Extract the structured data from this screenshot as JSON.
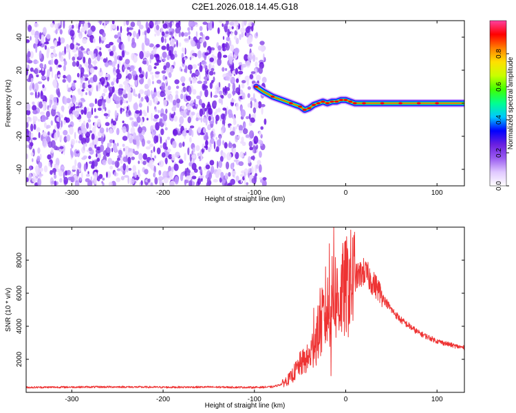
{
  "title": "C2E1.2026.018.14.45.G18",
  "chart_data": [
    {
      "type": "heatmap",
      "xlabel": "Height of straight line (km)",
      "ylabel": "Frequency (Hz)",
      "xlim": [
        -350,
        130
      ],
      "ylim": [
        -50,
        50
      ],
      "x_ticks": [
        -300,
        -200,
        -100,
        0,
        100
      ],
      "y_ticks": [
        -40,
        -20,
        0,
        20,
        40
      ],
      "noise_region_x": [
        -350,
        -88
      ],
      "ridge": {
        "x": [
          -98,
          -90,
          -80,
          -70,
          -60,
          -50,
          -45,
          -40,
          -35,
          -30,
          -25,
          -20,
          -15,
          -10,
          -5,
          0,
          5,
          10,
          20,
          40,
          60,
          80,
          100,
          130
        ],
        "y": [
          10,
          7,
          4,
          2,
          0,
          -2,
          -4,
          -3,
          -1,
          0,
          1,
          0,
          1,
          1,
          2,
          2,
          1,
          0,
          0,
          0,
          0,
          0,
          0,
          0
        ]
      },
      "colorbar": {
        "label": "Normalized spectral amplitude",
        "range": [
          0,
          1
        ],
        "ticks": [
          "0.0",
          "0.2",
          "0.4",
          "0.6",
          "0.8"
        ],
        "colors": [
          "#ffffff",
          "#e0c8ff",
          "#9a5cf0",
          "#6a1fe0",
          "#0000ff",
          "#00c8ff",
          "#00ff90",
          "#40ff00",
          "#c8ff00",
          "#ffe000",
          "#ff8000",
          "#ff0000",
          "#ff40a0"
        ]
      }
    },
    {
      "type": "line",
      "xlabel": "Height of straight line (km)",
      "ylabel": "SNR (10 * v/v)",
      "xlim": [
        -350,
        130
      ],
      "ylim": [
        0,
        10000
      ],
      "x_ticks": [
        -300,
        -200,
        -100,
        0,
        100
      ],
      "y_ticks": [
        2000,
        4000,
        6000,
        8000
      ],
      "color": "#ee3333",
      "x": [
        -350,
        -300,
        -250,
        -200,
        -150,
        -100,
        -80,
        -70,
        -60,
        -50,
        -40,
        -35,
        -30,
        -25,
        -20,
        -15,
        -12,
        -8,
        -4,
        0,
        10,
        20,
        25,
        30,
        35,
        40,
        50,
        60,
        80,
        100,
        120,
        130
      ],
      "y": [
        300,
        320,
        330,
        310,
        320,
        300,
        330,
        500,
        900,
        1700,
        2100,
        2800,
        3600,
        4400,
        4900,
        5500,
        6000,
        5500,
        6000,
        6300,
        6900,
        7300,
        7000,
        6600,
        6300,
        5800,
        5000,
        4400,
        3600,
        3100,
        2800,
        2700
      ],
      "spikes": [
        {
          "x": -13,
          "y": 10000
        },
        {
          "x": -18,
          "y": 9000
        },
        {
          "x": -22,
          "y": 7600
        },
        {
          "x": -16,
          "y": 1000
        },
        {
          "x": -28,
          "y": 6300
        },
        {
          "x": -35,
          "y": 5100
        },
        {
          "x": 22,
          "y": 7800
        }
      ]
    }
  ]
}
